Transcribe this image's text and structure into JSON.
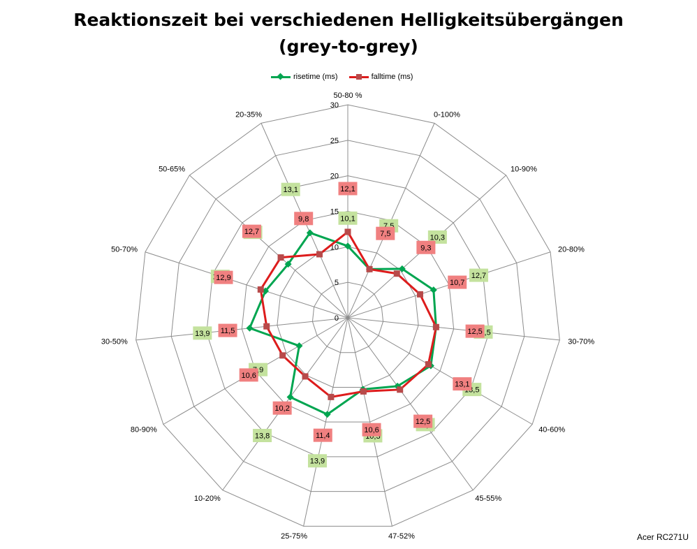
{
  "title_line1": "Reaktionszeit bei verschiedenen Helligkeitsübergängen",
  "title_line2": "(grey-to-grey)",
  "credit": "Acer RC271U",
  "chart_data": {
    "type": "radar",
    "categories": [
      "50-80 %",
      "0-100%",
      "10-90%",
      "20-80%",
      "30-70%",
      "40-60%",
      "45-55%",
      "47-52%",
      "25-75%",
      "10-20%",
      "80-90%",
      "30-50%",
      "50-70%",
      "50-65%",
      "20-35%"
    ],
    "rlim": [
      0,
      30
    ],
    "ticks": [
      0,
      5,
      10,
      15,
      20,
      25,
      30
    ],
    "grid": true,
    "legend_position": "top",
    "series": [
      {
        "name": "risetime (ms)",
        "color": "#00a550",
        "label_bg": "#c4e29e",
        "marker": "diamond",
        "values": [
          10.1,
          7.5,
          10.3,
          12.7,
          12.5,
          13.5,
          11.9,
          10.3,
          13.9,
          13.8,
          7.9,
          13.9,
          12.2,
          11.3,
          13.1
        ],
        "labels": [
          "10,1",
          "7,5",
          "10,3",
          "12,7",
          "12,5",
          "13,5",
          "11,9",
          "10,3",
          "13,9",
          "13,8",
          "7,9",
          "13,9",
          "12,2",
          "11,3",
          "13,1"
        ]
      },
      {
        "name": "falltime (ms)",
        "color": "#dd1c1c",
        "label_bg": "#f08080",
        "marker": "square",
        "values": [
          12.1,
          7.5,
          9.3,
          10.7,
          12.5,
          13.1,
          12.5,
          10.6,
          11.4,
          10.2,
          10.6,
          11.5,
          12.9,
          12.7,
          9.8
        ],
        "labels": [
          "12,1",
          "7,5",
          "9,3",
          "10,7",
          "12,5",
          "13,1",
          "12,5",
          "10,6",
          "11,4",
          "10,2",
          "10,6",
          "11,5",
          "12,9",
          "12,7",
          "9,8"
        ]
      }
    ]
  }
}
